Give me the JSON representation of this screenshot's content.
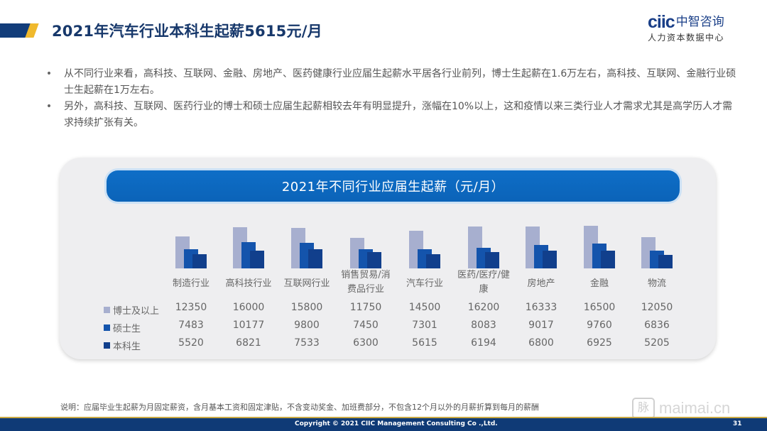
{
  "header": {
    "title": "2021年汽车行业本科生起薪5615元/月",
    "accent_colors": {
      "dark_blue": "#123d7a",
      "gold": "#f0b92d"
    }
  },
  "logo": {
    "mark": "ciic",
    "name_cn": "中智咨询",
    "subtitle": "人力资本数据中心"
  },
  "bullets": [
    "从不同行业来看，高科技、互联网、金融、房地产、医药健康行业应届生起薪水平居各行业前列，博士生起薪在1.6万左右，高科技、互联网、金融行业硕士生起薪在1万左右。",
    "另外，高科技、互联网、医药行业的博士和硕士应届生起薪相较去年有明显提升，涨幅在10%以上，这和疫情以来三类行业人才需求尤其是高学历人才需求持续扩张有关。"
  ],
  "chart_data": {
    "type": "bar",
    "title": "2021年不同行业应届生起薪（元/月）",
    "xlabel": "",
    "ylabel": "",
    "unit": "元/月",
    "grid": false,
    "legend_position": "left (table rows)",
    "categories": [
      "制造行业",
      "高科技行业",
      "互联网行业",
      "销售贸易/消费品行业",
      "汽车行业",
      "医药/医疗/健康",
      "房地产",
      "金融",
      "物流"
    ],
    "category_display": [
      [
        "制造行业"
      ],
      [
        "高科技行业"
      ],
      [
        "互联网行业"
      ],
      [
        "销售贸易/消",
        "费品行业"
      ],
      [
        "汽车行业"
      ],
      [
        "医药/医疗/健",
        "康"
      ],
      [
        "房地产"
      ],
      [
        "金融"
      ],
      [
        "物流"
      ]
    ],
    "series": [
      {
        "name": "博士及以上",
        "color": "#a7afcf",
        "values": [
          12350,
          16000,
          15800,
          11750,
          14500,
          16200,
          16333,
          16500,
          12050
        ]
      },
      {
        "name": "硕士生",
        "color": "#1454ac",
        "values": [
          7483,
          10177,
          9800,
          7450,
          7301,
          8083,
          9017,
          9760,
          6836
        ]
      },
      {
        "name": "本科生",
        "color": "#113f8c",
        "values": [
          5520,
          6821,
          7533,
          6300,
          5615,
          6194,
          6800,
          6925,
          5205
        ]
      }
    ],
    "ylim": [
      0,
      17000
    ]
  },
  "note": "说明：应届毕业生起薪为月固定薪资，含月基本工资和固定津贴，不含变动奖金、加班费部分，不包含12个月以外的月薪折算到每月的薪酬",
  "watermark": {
    "box": "脉",
    "text": "maimai.cn"
  },
  "footer": {
    "copyright": "Copyright © 2021 CIIC Management Consulting Co .,Ltd.",
    "page_number": "31"
  }
}
